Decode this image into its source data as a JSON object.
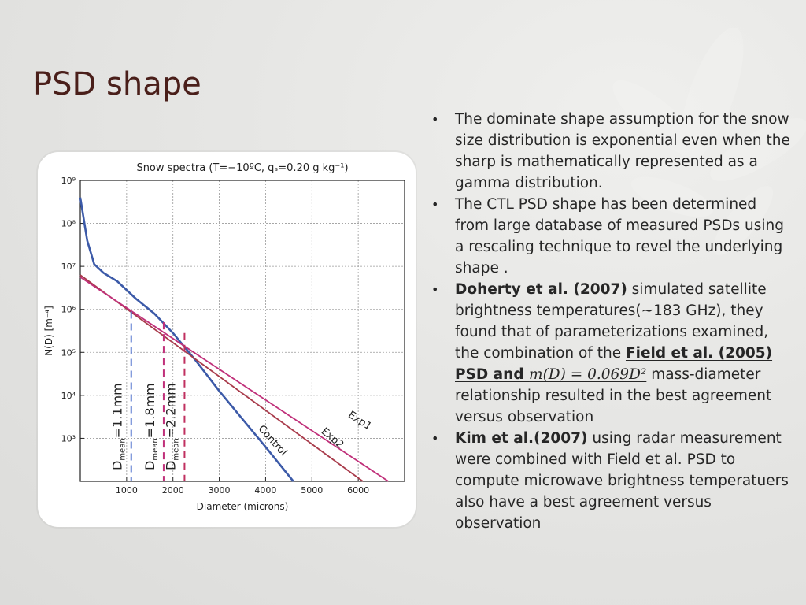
{
  "slide": {
    "title": "PSD shape"
  },
  "bullets": [
    {
      "text": "The dominate shape assumption for the snow size distribution is exponential even when the sharp is mathematically represented as a gamma distribution."
    },
    {
      "before": "The CTL PSD shape has been determined from large database of measured PSDs using a ",
      "link": "rescaling technique",
      "after": " to revel the underlying shape ."
    },
    {
      "bold": "Doherty et al. (2007)",
      "before": " simulated satellite brightness temperatures(~183 GHz), they found that of parameterizations examined, the combination of the ",
      "link": "Field et al. (2005) PSD and ",
      "math": "m(D) = 0.069D²",
      "after": " mass-diameter relationship resulted in the best agreement versus observation"
    },
    {
      "bold": "Kim et al.(2007)",
      "after": " using radar measurement were combined with Field et al. PSD to compute microwave brightness temperatuers also have a best agreement versus observation"
    }
  ],
  "chart_data": {
    "type": "line",
    "title": "Snow spectra (T=−10ºC, qₛ=0.20 g kg⁻¹)",
    "xlabel": "Diameter (microns)",
    "ylabel": "N(D) [m⁻⁴]",
    "xlim": [
      0,
      7000
    ],
    "ylim_log10": [
      2,
      9
    ],
    "yscale": "log",
    "grid": true,
    "xticks": [
      "1000",
      "2000",
      "3000",
      "4000",
      "5000",
      "6000"
    ],
    "yticks": [
      "10⁹",
      "10⁸",
      "10⁷",
      "10⁶",
      "10⁵",
      "10⁴",
      "10³"
    ],
    "series": [
      {
        "name": "Control",
        "color": "#3c5aa8",
        "points_log10": [
          [
            0,
            8.6
          ],
          [
            150,
            7.6
          ],
          [
            300,
            7.05
          ],
          [
            500,
            6.85
          ],
          [
            800,
            6.65
          ],
          [
            1200,
            6.25
          ],
          [
            1600,
            5.9
          ],
          [
            2000,
            5.45
          ],
          [
            2500,
            4.8
          ],
          [
            3000,
            4.1
          ],
          [
            3500,
            3.45
          ],
          [
            4000,
            2.8
          ],
          [
            4600,
            2.0
          ]
        ]
      },
      {
        "name": "Exp2",
        "color": "#a83a4a",
        "points_log10": [
          [
            0,
            6.8
          ],
          [
            6100,
            2.0
          ]
        ]
      },
      {
        "name": "Exp1",
        "color": "#c0307a",
        "points_log10": [
          [
            0,
            6.75
          ],
          [
            6650,
            2.0
          ]
        ]
      }
    ],
    "annotations": [
      {
        "label": "D",
        "sub": "mean",
        "value": "=1.1mm",
        "x": 1100,
        "color": "#5a7ad0"
      },
      {
        "label": "D",
        "sub": "mean",
        "value": "=1.8mm",
        "x": 1800,
        "color": "#c0307a"
      },
      {
        "label": "D",
        "sub": "mean",
        "value": "=2.2mm",
        "x": 2250,
        "color": "#c03060"
      }
    ]
  }
}
